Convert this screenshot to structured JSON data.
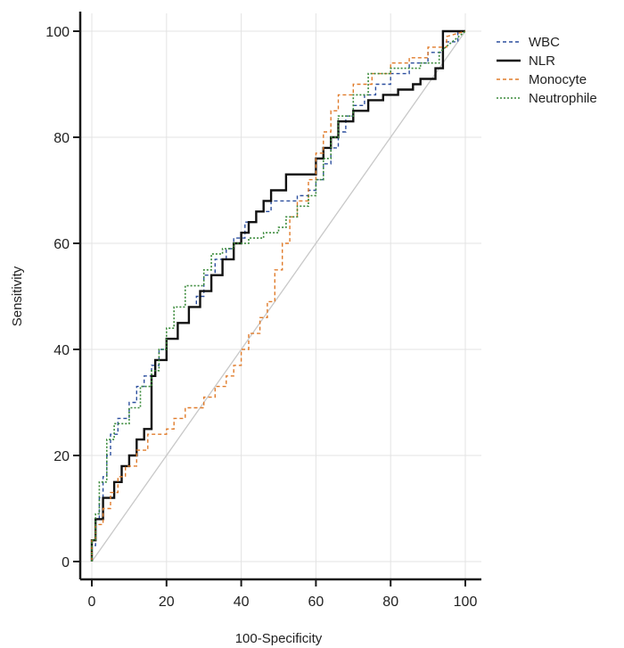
{
  "chart_data": {
    "type": "line",
    "title": "",
    "xlabel": "100-Specificity",
    "ylabel": "Sensitivity",
    "xlim": [
      0,
      100
    ],
    "ylim": [
      0,
      100
    ],
    "xticks": [
      0,
      20,
      40,
      60,
      80,
      100
    ],
    "yticks": [
      0,
      20,
      40,
      60,
      80,
      100
    ],
    "grid": true,
    "legend_position": "top-right",
    "reference_line": {
      "x": [
        0,
        100
      ],
      "y": [
        0,
        100
      ],
      "color": "#c8c8c8"
    },
    "series": [
      {
        "name": "WBC",
        "color": "#2b4e9e",
        "dash": "4,3",
        "width": 1.4,
        "x": [
          0,
          0,
          1,
          1,
          2,
          2,
          3,
          3,
          4,
          4,
          5,
          5,
          7,
          7,
          10,
          10,
          12,
          12,
          14,
          14,
          16,
          16,
          18,
          18,
          20,
          20,
          23,
          23,
          26,
          26,
          28,
          28,
          30,
          30,
          33,
          33,
          36,
          36,
          38,
          38,
          41,
          41,
          44,
          44,
          48,
          48,
          52,
          52,
          55,
          55,
          58,
          58,
          60,
          60,
          62,
          62,
          64,
          64,
          66,
          66,
          68,
          68,
          70,
          70,
          73,
          73,
          76,
          76,
          80,
          80,
          85,
          85,
          90,
          90,
          94,
          94,
          98,
          98,
          100
        ],
        "y": [
          0,
          3,
          3,
          8,
          8,
          12,
          12,
          16,
          16,
          20,
          20,
          24,
          24,
          27,
          27,
          30,
          30,
          33,
          33,
          35,
          35,
          37,
          37,
          40,
          40,
          42,
          42,
          45,
          45,
          48,
          48,
          50,
          50,
          54,
          54,
          57,
          57,
          59,
          59,
          61,
          61,
          64,
          64,
          66,
          66,
          68,
          68,
          68,
          68,
          69,
          69,
          70,
          70,
          72,
          72,
          75,
          75,
          78,
          78,
          81,
          81,
          84,
          84,
          86,
          86,
          88,
          88,
          90,
          90,
          92,
          92,
          94,
          94,
          96,
          96,
          98,
          98,
          100,
          100
        ]
      },
      {
        "name": "NLR",
        "color": "#111111",
        "dash": "",
        "width": 2.4,
        "x": [
          0,
          0,
          1,
          1,
          3,
          3,
          6,
          6,
          8,
          8,
          10,
          10,
          12,
          12,
          14,
          14,
          16,
          16,
          17,
          17,
          20,
          20,
          23,
          23,
          26,
          26,
          29,
          29,
          32,
          32,
          35,
          35,
          38,
          38,
          40,
          40,
          42,
          42,
          44,
          44,
          46,
          46,
          48,
          48,
          52,
          52,
          55,
          55,
          60,
          60,
          62,
          62,
          64,
          64,
          66,
          66,
          70,
          70,
          74,
          74,
          78,
          78,
          82,
          82,
          86,
          86,
          88,
          88,
          92,
          92,
          94,
          94,
          100
        ],
        "y": [
          0,
          4,
          4,
          8,
          8,
          12,
          12,
          15,
          15,
          18,
          18,
          20,
          20,
          23,
          23,
          25,
          25,
          35,
          35,
          38,
          38,
          42,
          42,
          45,
          45,
          48,
          48,
          51,
          51,
          54,
          54,
          57,
          57,
          60,
          60,
          62,
          62,
          64,
          64,
          66,
          66,
          68,
          68,
          70,
          70,
          73,
          73,
          73,
          73,
          76,
          76,
          78,
          78,
          80,
          80,
          83,
          83,
          85,
          85,
          87,
          87,
          88,
          88,
          89,
          89,
          90,
          90,
          91,
          91,
          93,
          93,
          100,
          100
        ]
      },
      {
        "name": "Monocyte",
        "color": "#e07b2a",
        "dash": "4,3",
        "width": 1.4,
        "x": [
          0,
          0,
          1,
          1,
          3,
          3,
          5,
          5,
          7,
          7,
          9,
          9,
          12,
          12,
          15,
          15,
          20,
          20,
          22,
          22,
          25,
          25,
          30,
          30,
          33,
          33,
          36,
          36,
          38,
          38,
          40,
          40,
          42,
          42,
          45,
          45,
          47,
          47,
          49,
          49,
          51,
          51,
          53,
          53,
          55,
          55,
          58,
          58,
          60,
          60,
          62,
          62,
          64,
          64,
          66,
          66,
          70,
          70,
          75,
          75,
          80,
          80,
          85,
          85,
          90,
          90,
          95,
          95,
          100
        ],
        "y": [
          0,
          4,
          4,
          7,
          7,
          10,
          10,
          13,
          13,
          16,
          16,
          18,
          18,
          21,
          21,
          24,
          24,
          25,
          25,
          27,
          27,
          29,
          29,
          31,
          31,
          33,
          33,
          35,
          35,
          37,
          37,
          40,
          40,
          43,
          43,
          46,
          46,
          49,
          49,
          55,
          55,
          60,
          60,
          65,
          65,
          68,
          68,
          72,
          72,
          77,
          77,
          81,
          81,
          85,
          85,
          88,
          88,
          90,
          90,
          92,
          92,
          94,
          94,
          95,
          95,
          97,
          97,
          99,
          100
        ]
      },
      {
        "name": "Neutrophile",
        "color": "#3a8a3a",
        "dash": "2,2",
        "width": 1.6,
        "x": [
          0,
          0,
          1,
          1,
          2,
          2,
          4,
          4,
          6,
          6,
          10,
          10,
          13,
          13,
          16,
          16,
          18,
          18,
          20,
          20,
          22,
          22,
          25,
          25,
          30,
          30,
          32,
          32,
          35,
          35,
          38,
          38,
          42,
          42,
          46,
          46,
          50,
          50,
          52,
          52,
          55,
          55,
          58,
          58,
          60,
          60,
          62,
          62,
          64,
          64,
          66,
          66,
          70,
          70,
          74,
          74,
          80,
          80,
          88,
          88,
          93,
          93,
          100
        ],
        "y": [
          0,
          4,
          4,
          9,
          9,
          15,
          15,
          23,
          23,
          26,
          26,
          29,
          29,
          33,
          33,
          36,
          36,
          40,
          40,
          44,
          44,
          48,
          48,
          52,
          52,
          55,
          55,
          58,
          58,
          59,
          59,
          60,
          60,
          61,
          61,
          62,
          62,
          63,
          63,
          65,
          65,
          67,
          67,
          69,
          69,
          72,
          72,
          76,
          76,
          80,
          80,
          84,
          84,
          88,
          88,
          92,
          92,
          93,
          93,
          94,
          94,
          96,
          100
        ]
      }
    ]
  }
}
